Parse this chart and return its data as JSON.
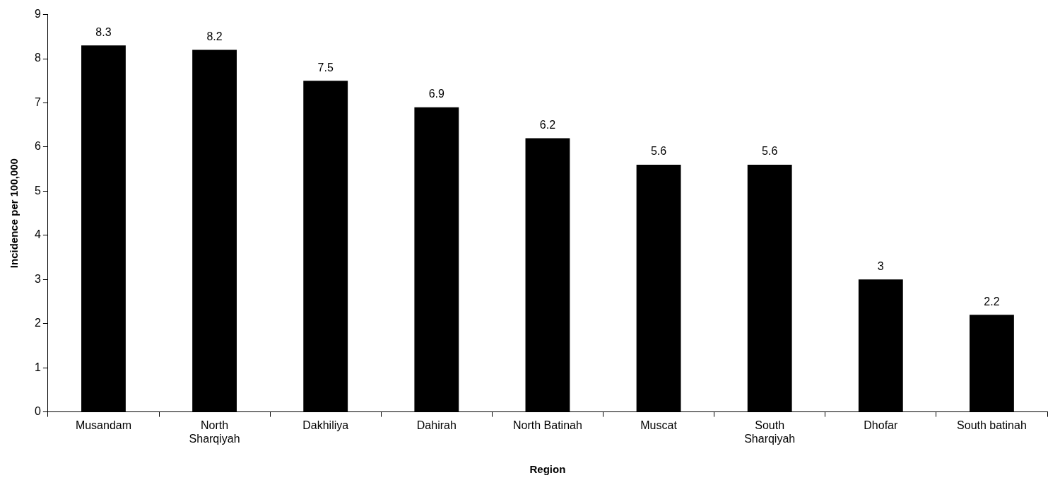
{
  "chart_data": {
    "type": "bar",
    "xlabel": "Region",
    "ylabel": "Incidence per 100,000",
    "categories": [
      "Musandam",
      "North Sharqiyah",
      "Dakhiliya",
      "Dahirah",
      "North Batinah",
      "Muscat",
      "South Sharqiyah",
      "Dhofar",
      "South batinah"
    ],
    "values": [
      8.3,
      8.2,
      7.5,
      6.9,
      6.2,
      5.6,
      5.6,
      3,
      2.2
    ],
    "color": "#000000",
    "ylim": [
      0,
      9
    ],
    "yticks": [
      0,
      1,
      2,
      3,
      4,
      5,
      6,
      7,
      8,
      9
    ],
    "grid": false,
    "legend": false,
    "data_labels": true
  }
}
